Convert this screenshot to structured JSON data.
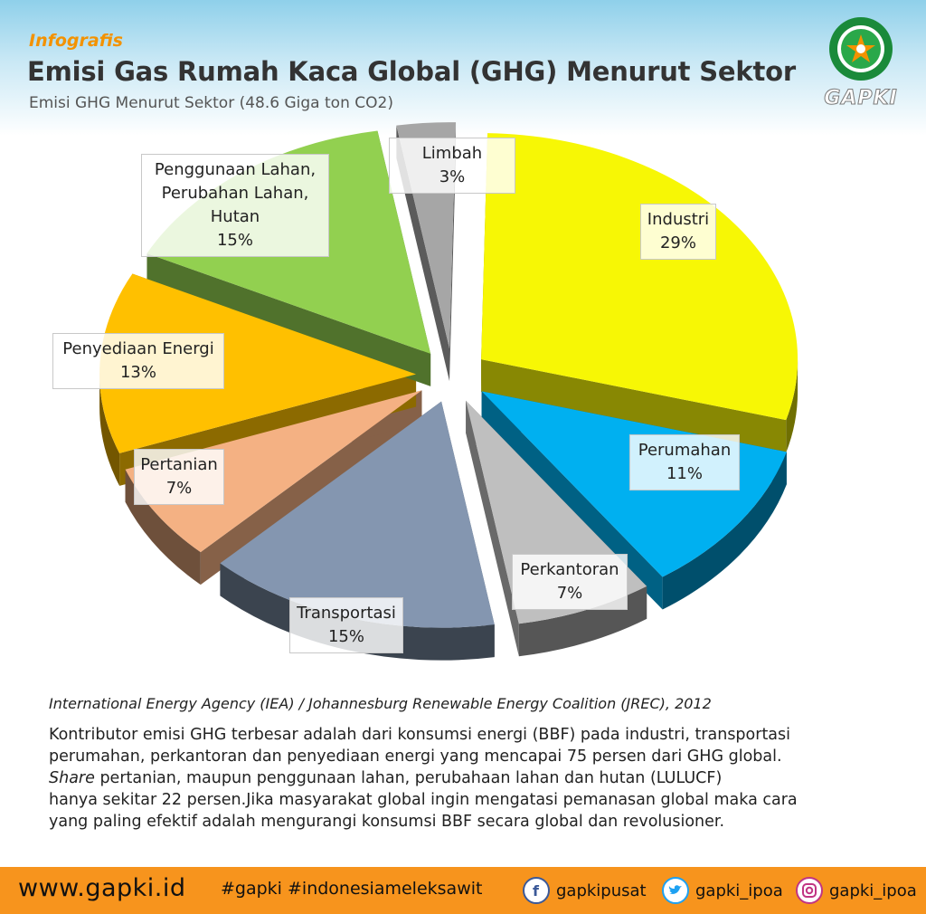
{
  "header": {
    "kicker": "Infografis",
    "title": "Emisi Gas Rumah Kaca Global (GHG) Menurut Sektor",
    "subtitle": "Emisi GHG Menurut Sektor (48.6 Giga ton CO2)"
  },
  "logo": {
    "text": "GAPKI",
    "ring_text": "GABUNGAN PENGUSAHA KELAPA SAWIT INDONESIA"
  },
  "chart_data": {
    "type": "pie",
    "title": "Emisi GHG Menurut Sektor (48.6 Giga ton CO2)",
    "slices": [
      {
        "label": "Industri",
        "value": 29,
        "color": "#f7f705"
      },
      {
        "label": "Perumahan",
        "value": 11,
        "color": "#00b0f0"
      },
      {
        "label": "Perkantoran",
        "value": 7,
        "color": "#bfbfbf"
      },
      {
        "label": "Transportasi",
        "value": 15,
        "color": "#8496b0"
      },
      {
        "label": "Pertanian",
        "value": 7,
        "color": "#f4b183"
      },
      {
        "label": "Penyediaan Energi",
        "value": 13,
        "color": "#ffc000"
      },
      {
        "label": "Penggunaan Lahan, Perubahan Lahan, Hutan",
        "value": 15,
        "color": "#92d050"
      },
      {
        "label": "Limbah",
        "value": 3,
        "color": "#a6a6a6"
      }
    ]
  },
  "labels": {
    "industri": {
      "name": "Industri",
      "pct": "29%"
    },
    "perumahan": {
      "name": "Perumahan",
      "pct": "11%"
    },
    "perkantoran": {
      "name": "Perkantoran",
      "pct": "7%"
    },
    "transportasi": {
      "name": "Transportasi",
      "pct": "15%"
    },
    "pertanian": {
      "name": "Pertanian",
      "pct": "7%"
    },
    "energi": {
      "name": "Penyediaan Energi",
      "pct": "13%"
    },
    "lahan": {
      "line1": "Penggunaan Lahan,",
      "line2": "Perubahan Lahan,",
      "line3": "Hutan",
      "pct": "15%"
    },
    "limbah": {
      "name": "Limbah",
      "pct": "3%"
    }
  },
  "source": "International Energy Agency (IEA) / Johannesburg Renewable Energy Coalition (JREC), 2012",
  "body": {
    "line1": "Kontributor emisi GHG terbesar adalah dari konsumsi energi (BBF) pada industri, transportasi",
    "line2": "perumahan, perkantoran dan penyediaan energi yang mencapai 75 persen dari GHG global.",
    "line3_italic": "Share",
    "line3_rest": " pertanian, maupun penggunaan lahan, perubahaan lahan dan hutan (LULUCF)",
    "line4": "hanya sekitar 22 persen.Jika masyarakat global ingin mengatasi pemanasan global maka cara",
    "line5": "yang paling efektif adalah mengurangi konsumsi BBF secara global dan revolusioner."
  },
  "footer": {
    "website": "www.gapki.id",
    "hashtags": "#gapki #indonesiameleksawit",
    "facebook": "gapkipusat",
    "twitter": "gapki_ipoa",
    "instagram": "gapki_ipoa",
    "color": "#f7941d"
  },
  "icons": [
    "facebook-icon",
    "twitter-icon",
    "instagram-icon",
    "gapki-logo"
  ]
}
